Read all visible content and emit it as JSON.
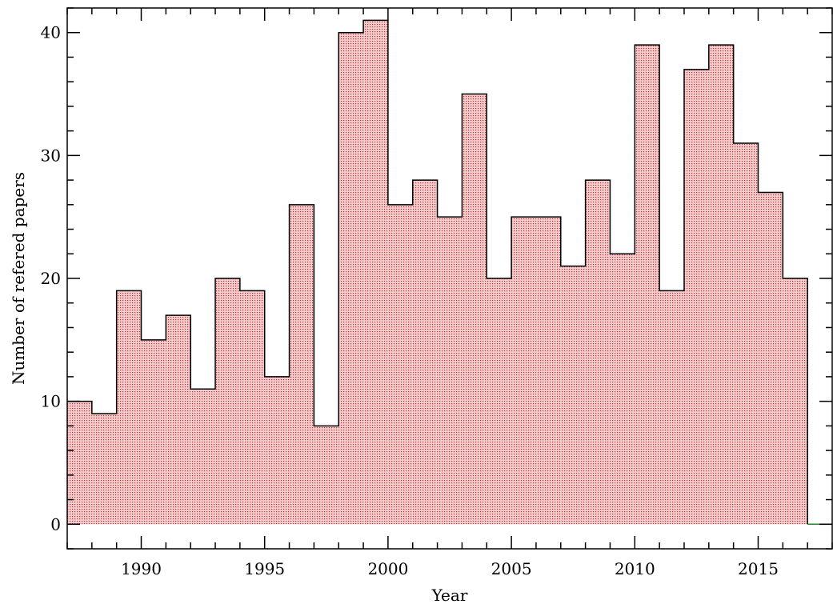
{
  "chart_data": {
    "type": "bar",
    "style": "step-histogram",
    "x": [
      1987,
      1988,
      1989,
      1990,
      1991,
      1992,
      1993,
      1994,
      1995,
      1996,
      1997,
      1998,
      1999,
      2000,
      2001,
      2002,
      2003,
      2004,
      2005,
      2006,
      2007,
      2008,
      2009,
      2010,
      2011,
      2012,
      2013,
      2014,
      2015,
      2016,
      2017
    ],
    "values": [
      10,
      9,
      19,
      15,
      17,
      11,
      20,
      19,
      12,
      26,
      8,
      40,
      41,
      26,
      28,
      25,
      35,
      20,
      25,
      25,
      21,
      28,
      22,
      39,
      19,
      37,
      39,
      31,
      27,
      20,
      0
    ],
    "bin_width": 1,
    "xlabel": "Year",
    "ylabel": "Number of refered papers",
    "xlim": [
      1987,
      2018
    ],
    "ylim": [
      -2,
      42
    ],
    "x_ticks": [
      "1990",
      "1995",
      "2000",
      "2005",
      "2010",
      "2015"
    ],
    "y_ticks": [
      "0",
      "10",
      "20",
      "30",
      "40"
    ],
    "grid": false,
    "legend": "none",
    "colors": {
      "fill": "#f4c6c6",
      "dots": "#c0303a",
      "outline": "#000000",
      "zero_line": "#2a8a2a"
    }
  }
}
